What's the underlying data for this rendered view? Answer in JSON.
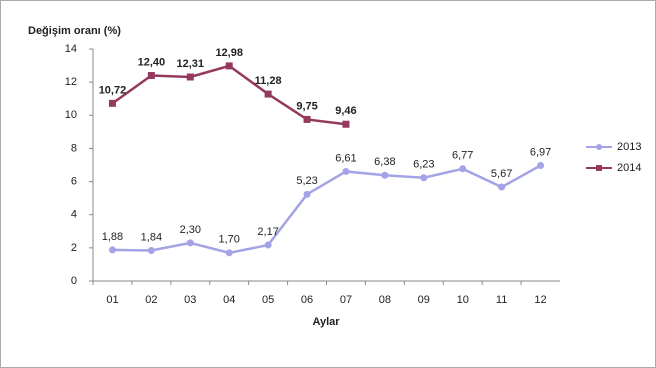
{
  "chart_data": {
    "type": "line",
    "y_label": "Değişim oranı (%)",
    "x_label": "Aylar",
    "categories": [
      "01",
      "02",
      "03",
      "04",
      "05",
      "06",
      "07",
      "08",
      "09",
      "10",
      "11",
      "12"
    ],
    "series": [
      {
        "name": "2013",
        "color": "#a3a3e6",
        "values": [
          1.88,
          1.84,
          2.3,
          1.7,
          2.17,
          5.23,
          6.61,
          6.38,
          6.23,
          6.77,
          5.67,
          6.97
        ],
        "value_labels": [
          "1,88",
          "1,84",
          "2,30",
          "1,70",
          "2,17",
          "5,23",
          "6,61",
          "6,38",
          "6,23",
          "6,77",
          "5,67",
          "6,97"
        ]
      },
      {
        "name": "2014",
        "color": "#953a5e",
        "values": [
          10.72,
          12.4,
          12.31,
          12.98,
          11.28,
          9.75,
          9.46,
          null,
          null,
          null,
          null,
          null
        ],
        "value_labels": [
          "10,72",
          "12,40",
          "12,31",
          "12,98",
          "11,28",
          "9,75",
          "9,46",
          null,
          null,
          null,
          null,
          null
        ]
      }
    ],
    "ylim": [
      0,
      14
    ],
    "yticks": [
      0,
      2,
      4,
      6,
      8,
      10,
      12,
      14
    ],
    "grid": false,
    "legend": "right"
  }
}
